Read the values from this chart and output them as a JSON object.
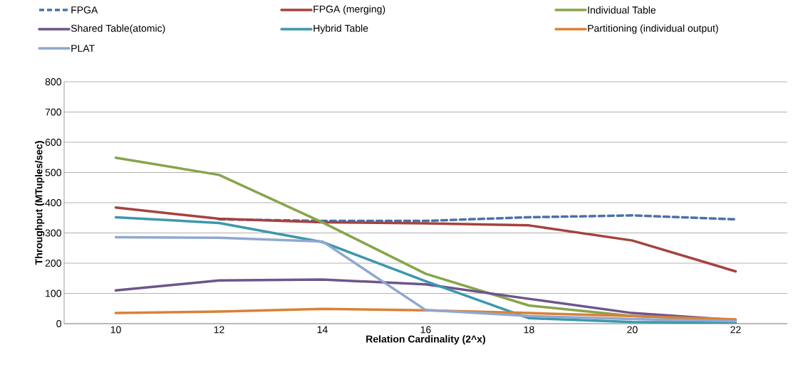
{
  "chart_data": {
    "type": "line",
    "xlabel": "Relation Cardinality (2^x)",
    "ylabel": "Throughput (MTuples/sec)",
    "categories": [
      "10",
      "12",
      "14",
      "16",
      "18",
      "20",
      "22"
    ],
    "ylim": [
      0,
      800
    ],
    "yticks": [
      0,
      100,
      200,
      300,
      400,
      500,
      600,
      700,
      800
    ],
    "grid": "y",
    "legend": "top",
    "marker": "none",
    "series": [
      {
        "name": "FPGA",
        "color": "#4a72a8",
        "line_style": "dashed",
        "values": [
          null,
          345,
          340,
          340,
          352,
          358,
          345
        ]
      },
      {
        "name": "FPGA (merging)",
        "color": "#a5423f",
        "values": [
          384,
          347,
          335,
          332,
          325,
          275,
          173
        ]
      },
      {
        "name": "Individual Table",
        "color": "#86a54a",
        "values": [
          549,
          492,
          335,
          165,
          60,
          25,
          12
        ]
      },
      {
        "name": "Shared Table(atomic)",
        "color": "#6e548d",
        "values": [
          110,
          143,
          146,
          130,
          82,
          35,
          12
        ]
      },
      {
        "name": "Hybrid Table",
        "color": "#3d97ad",
        "values": [
          352,
          333,
          270,
          140,
          18,
          5,
          3
        ]
      },
      {
        "name": "Partitioning (individual output)",
        "color": "#da8136",
        "values": [
          35,
          40,
          49,
          44,
          35,
          25,
          14
        ]
      },
      {
        "name": "PLAT",
        "color": "#8fa8d0",
        "values": [
          286,
          284,
          272,
          45,
          25,
          15,
          8
        ]
      }
    ]
  }
}
